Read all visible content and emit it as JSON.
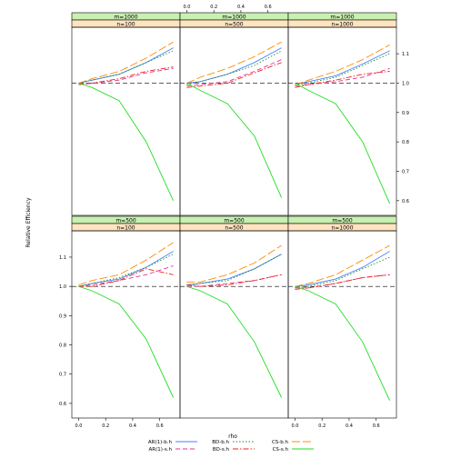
{
  "chart_data": {
    "type": "line",
    "ylabel": "Relative Efficiency",
    "xlabel": "rho",
    "x": [
      0.0,
      0.1,
      0.3,
      0.5,
      0.7
    ],
    "xticks": [
      0.0,
      0.2,
      0.4,
      0.6
    ],
    "xtick_labels": [
      "0.0",
      "0.2",
      "0.4",
      "0.6"
    ],
    "xlim": [
      -0.05,
      0.75
    ],
    "ylim": [
      0.55,
      1.19
    ],
    "yticks": [
      0.6,
      0.7,
      0.8,
      0.9,
      1.0,
      1.1
    ],
    "ytick_labels": [
      "0.6",
      "0.7",
      "0.8",
      "0.9",
      "1.0",
      "1.1"
    ],
    "reference_line": 1.0,
    "colors": {
      "strip_top": "#c8f0b0",
      "strip_bottom": "#ffe4c0",
      "AR1-b": "#4682ff",
      "AR1-s": "#e6328c",
      "BD-b": "#228b22",
      "BD-s": "#ee2222",
      "CS-b": "#ff8c00",
      "CS-s": "#22dd22"
    },
    "legend": [
      {
        "key": "AR1-b",
        "label": "AR(1)-b.h",
        "dash": "none"
      },
      {
        "key": "AR1-s",
        "label": "AR(1)-s.h",
        "dash": "5,3"
      },
      {
        "key": "BD-b",
        "label": "BD-b.h",
        "dash": "1.5,2"
      },
      {
        "key": "BD-s",
        "label": "BD-s.h",
        "dash": "6,2,1.5,2"
      },
      {
        "key": "CS-b",
        "label": "CS-b.h",
        "dash": "9,3"
      },
      {
        "key": "CS-s",
        "label": "CS-s.h",
        "dash": "none"
      }
    ],
    "panels": [
      {
        "strip_top": "m=1000",
        "strip_bottom": "n=100",
        "series": {
          "AR1-b": [
            1.0,
            1.01,
            1.03,
            1.07,
            1.12
          ],
          "AR1-s": [
            0.995,
            1.0,
            1.01,
            1.035,
            1.05
          ],
          "BD-b": [
            1.0,
            1.01,
            1.03,
            1.07,
            1.11
          ],
          "BD-s": [
            0.995,
            1.0,
            1.015,
            1.04,
            1.055
          ],
          "CS-b": [
            1.0,
            1.015,
            1.04,
            1.085,
            1.14
          ],
          "CS-s": [
            1.0,
            0.985,
            0.94,
            0.8,
            0.6
          ]
        }
      },
      {
        "strip_top": "m=1000",
        "strip_bottom": "n=500",
        "series": {
          "AR1-b": [
            1.0,
            1.005,
            1.03,
            1.07,
            1.12
          ],
          "AR1-s": [
            0.99,
            0.995,
            1.005,
            1.04,
            1.08
          ],
          "BD-b": [
            0.995,
            1.005,
            1.03,
            1.06,
            1.11
          ],
          "BD-s": [
            0.985,
            0.99,
            1.0,
            1.035,
            1.07
          ],
          "CS-b": [
            1.0,
            1.02,
            1.05,
            1.09,
            1.14
          ],
          "CS-s": [
            1.0,
            0.975,
            0.93,
            0.82,
            0.61
          ]
        }
      },
      {
        "strip_top": "m=1000",
        "strip_bottom": "n=1000",
        "series": {
          "AR1-b": [
            0.995,
            1.005,
            1.025,
            1.065,
            1.11
          ],
          "AR1-s": [
            0.99,
            0.995,
            1.005,
            1.02,
            1.05
          ],
          "BD-b": [
            0.995,
            1.0,
            1.02,
            1.06,
            1.1
          ],
          "BD-s": [
            0.985,
            0.995,
            1.01,
            1.03,
            1.04
          ],
          "CS-b": [
            0.995,
            1.01,
            1.04,
            1.08,
            1.13
          ],
          "CS-s": [
            1.0,
            0.975,
            0.93,
            0.8,
            0.59
          ]
        }
      },
      {
        "strip_top": "m=500",
        "strip_bottom": "n=100",
        "series": {
          "AR1-b": [
            1.0,
            1.01,
            1.025,
            1.065,
            1.12
          ],
          "AR1-s": [
            1.0,
            1.005,
            1.02,
            1.04,
            1.07
          ],
          "BD-b": [
            1.0,
            1.01,
            1.03,
            1.065,
            1.11
          ],
          "BD-s": [
            1.0,
            1.0,
            1.02,
            1.06,
            1.04
          ],
          "CS-b": [
            1.005,
            1.02,
            1.04,
            1.09,
            1.15
          ],
          "CS-s": [
            1.0,
            0.985,
            0.94,
            0.82,
            0.62
          ]
        }
      },
      {
        "strip_top": "m=500",
        "strip_bottom": "n=500",
        "series": {
          "AR1-b": [
            1.005,
            1.01,
            1.025,
            1.06,
            1.11
          ],
          "AR1-s": [
            1.0,
            1.0,
            1.01,
            1.02,
            1.04
          ],
          "BD-b": [
            1.0,
            1.01,
            1.02,
            1.06,
            1.11
          ],
          "BD-s": [
            1.005,
            1.0,
            1.005,
            1.02,
            1.04
          ],
          "CS-b": [
            1.015,
            1.015,
            1.04,
            1.08,
            1.14
          ],
          "CS-s": [
            1.0,
            0.985,
            0.94,
            0.81,
            0.62
          ]
        }
      },
      {
        "strip_top": "m=500",
        "strip_bottom": "n=1000",
        "series": {
          "AR1-b": [
            1.0,
            1.005,
            1.025,
            1.065,
            1.12
          ],
          "AR1-s": [
            0.995,
            0.995,
            1.01,
            1.03,
            1.04
          ],
          "BD-b": [
            0.995,
            1.0,
            1.02,
            1.06,
            1.1
          ],
          "BD-s": [
            0.99,
            0.995,
            1.01,
            1.03,
            1.04
          ],
          "CS-b": [
            1.0,
            1.01,
            1.04,
            1.09,
            1.14
          ],
          "CS-s": [
            1.0,
            0.985,
            0.94,
            0.81,
            0.61
          ]
        }
      }
    ]
  }
}
